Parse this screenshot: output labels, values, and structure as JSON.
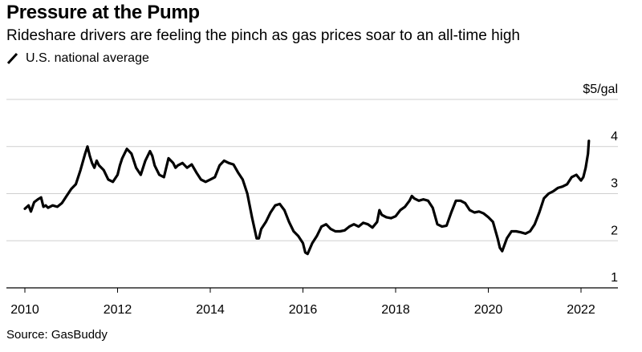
{
  "chart_data": {
    "type": "line",
    "title": "Pressure at the Pump",
    "subtitle": "Rideshare drivers are feeling the pinch as gas prices soar to an all-time high",
    "legend": [
      "U.S. national average"
    ],
    "source": "Source: GasBuddy",
    "ylabel": "$/gal",
    "ylim": [
      1,
      5
    ],
    "yticks": [
      1,
      2,
      3,
      4,
      5
    ],
    "ytick_labels": [
      "1",
      "2",
      "3",
      "4",
      "$5/gal"
    ],
    "xlim": [
      2009.97,
      2022.6
    ],
    "xticks": [
      2010,
      2012,
      2014,
      2016,
      2018,
      2020,
      2022
    ],
    "xtick_labels": [
      "2010",
      "2012",
      "2014",
      "2016",
      "2018",
      "2020",
      "2022"
    ],
    "grid": true,
    "series": [
      {
        "name": "U.S. national average",
        "x": [
          2010.0,
          2010.08,
          2010.13,
          2010.2,
          2010.28,
          2010.35,
          2010.4,
          2010.45,
          2010.5,
          2010.6,
          2010.7,
          2010.8,
          2010.9,
          2011.0,
          2011.1,
          2011.2,
          2011.3,
          2011.35,
          2011.4,
          2011.45,
          2011.5,
          2011.55,
          2011.6,
          2011.7,
          2011.8,
          2011.9,
          2012.0,
          2012.05,
          2012.1,
          2012.2,
          2012.3,
          2012.35,
          2012.4,
          2012.5,
          2012.6,
          2012.7,
          2012.75,
          2012.8,
          2012.9,
          2013.0,
          2013.05,
          2013.1,
          2013.2,
          2013.25,
          2013.3,
          2013.4,
          2013.5,
          2013.6,
          2013.7,
          2013.8,
          2013.9,
          2014.0,
          2014.1,
          2014.2,
          2014.3,
          2014.4,
          2014.5,
          2014.6,
          2014.7,
          2014.8,
          2014.9,
          2015.0,
          2015.05,
          2015.1,
          2015.2,
          2015.3,
          2015.4,
          2015.5,
          2015.6,
          2015.7,
          2015.8,
          2015.9,
          2016.0,
          2016.05,
          2016.1,
          2016.2,
          2016.3,
          2016.4,
          2016.5,
          2016.6,
          2016.7,
          2016.8,
          2016.9,
          2017.0,
          2017.1,
          2017.2,
          2017.3,
          2017.4,
          2017.5,
          2017.6,
          2017.65,
          2017.7,
          2017.8,
          2017.9,
          2018.0,
          2018.1,
          2018.2,
          2018.3,
          2018.35,
          2018.4,
          2018.5,
          2018.6,
          2018.7,
          2018.8,
          2018.9,
          2019.0,
          2019.1,
          2019.2,
          2019.3,
          2019.4,
          2019.5,
          2019.6,
          2019.7,
          2019.8,
          2019.9,
          2020.0,
          2020.1,
          2020.2,
          2020.25,
          2020.3,
          2020.4,
          2020.5,
          2020.6,
          2020.7,
          2020.8,
          2020.9,
          2021.0,
          2021.1,
          2021.2,
          2021.3,
          2021.4,
          2021.5,
          2021.6,
          2021.7,
          2021.8,
          2021.9,
          2022.0,
          2022.05,
          2022.1,
          2022.15,
          2022.17
        ],
        "y": [
          2.68,
          2.75,
          2.62,
          2.82,
          2.88,
          2.92,
          2.72,
          2.75,
          2.7,
          2.75,
          2.72,
          2.8,
          2.95,
          3.1,
          3.2,
          3.5,
          3.85,
          4.0,
          3.8,
          3.65,
          3.55,
          3.7,
          3.6,
          3.5,
          3.3,
          3.25,
          3.4,
          3.6,
          3.75,
          3.95,
          3.85,
          3.7,
          3.55,
          3.4,
          3.7,
          3.9,
          3.8,
          3.6,
          3.4,
          3.35,
          3.55,
          3.75,
          3.65,
          3.55,
          3.6,
          3.65,
          3.55,
          3.62,
          3.45,
          3.3,
          3.25,
          3.3,
          3.35,
          3.6,
          3.7,
          3.65,
          3.62,
          3.45,
          3.3,
          3.0,
          2.5,
          2.05,
          2.05,
          2.25,
          2.4,
          2.6,
          2.75,
          2.78,
          2.65,
          2.4,
          2.2,
          2.1,
          1.95,
          1.75,
          1.72,
          1.95,
          2.1,
          2.3,
          2.35,
          2.25,
          2.2,
          2.2,
          2.22,
          2.3,
          2.35,
          2.3,
          2.38,
          2.35,
          2.28,
          2.4,
          2.65,
          2.55,
          2.5,
          2.48,
          2.52,
          2.65,
          2.72,
          2.85,
          2.95,
          2.9,
          2.85,
          2.88,
          2.85,
          2.7,
          2.35,
          2.3,
          2.32,
          2.6,
          2.85,
          2.85,
          2.8,
          2.65,
          2.6,
          2.62,
          2.58,
          2.5,
          2.4,
          2.05,
          1.85,
          1.78,
          2.05,
          2.2,
          2.2,
          2.18,
          2.15,
          2.2,
          2.35,
          2.6,
          2.9,
          3.0,
          3.05,
          3.12,
          3.15,
          3.2,
          3.35,
          3.4,
          3.28,
          3.35,
          3.55,
          3.85,
          4.12
        ]
      }
    ]
  }
}
